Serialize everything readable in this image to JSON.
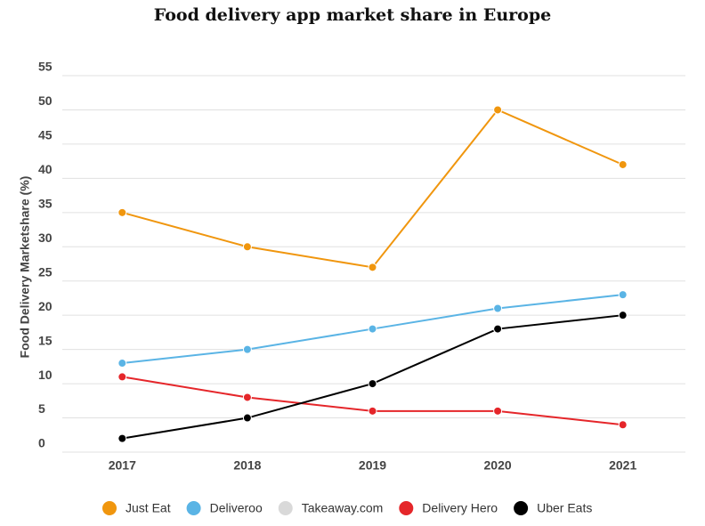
{
  "chart_data": {
    "type": "line",
    "title": "Food delivery app market share in Europe",
    "y_label": "Food Delivery Marketshare (%)",
    "categories": [
      "2017",
      "2018",
      "2019",
      "2020",
      "2021"
    ],
    "series": [
      {
        "name": "Just Eat",
        "color": "#f0960e",
        "values": [
          35,
          30,
          27,
          50,
          42
        ]
      },
      {
        "name": "Deliveroo",
        "color": "#5ab4e5",
        "values": [
          13,
          15,
          18,
          21,
          23
        ]
      },
      {
        "name": "Takeaway.com",
        "color": "#d9d9d9",
        "values": [
          null,
          null,
          null,
          null,
          null
        ]
      },
      {
        "name": "Delivery Hero",
        "color": "#e5262a",
        "values": [
          11,
          8,
          6,
          6,
          4
        ]
      },
      {
        "name": "Uber Eats",
        "color": "#000000",
        "values": [
          2,
          5,
          10,
          18,
          20
        ]
      }
    ],
    "ylim": [
      0,
      55
    ],
    "yticks": [
      0,
      5,
      10,
      15,
      20,
      25,
      30,
      35,
      40,
      45,
      50,
      55
    ],
    "grid": true,
    "legend": "bottom"
  }
}
